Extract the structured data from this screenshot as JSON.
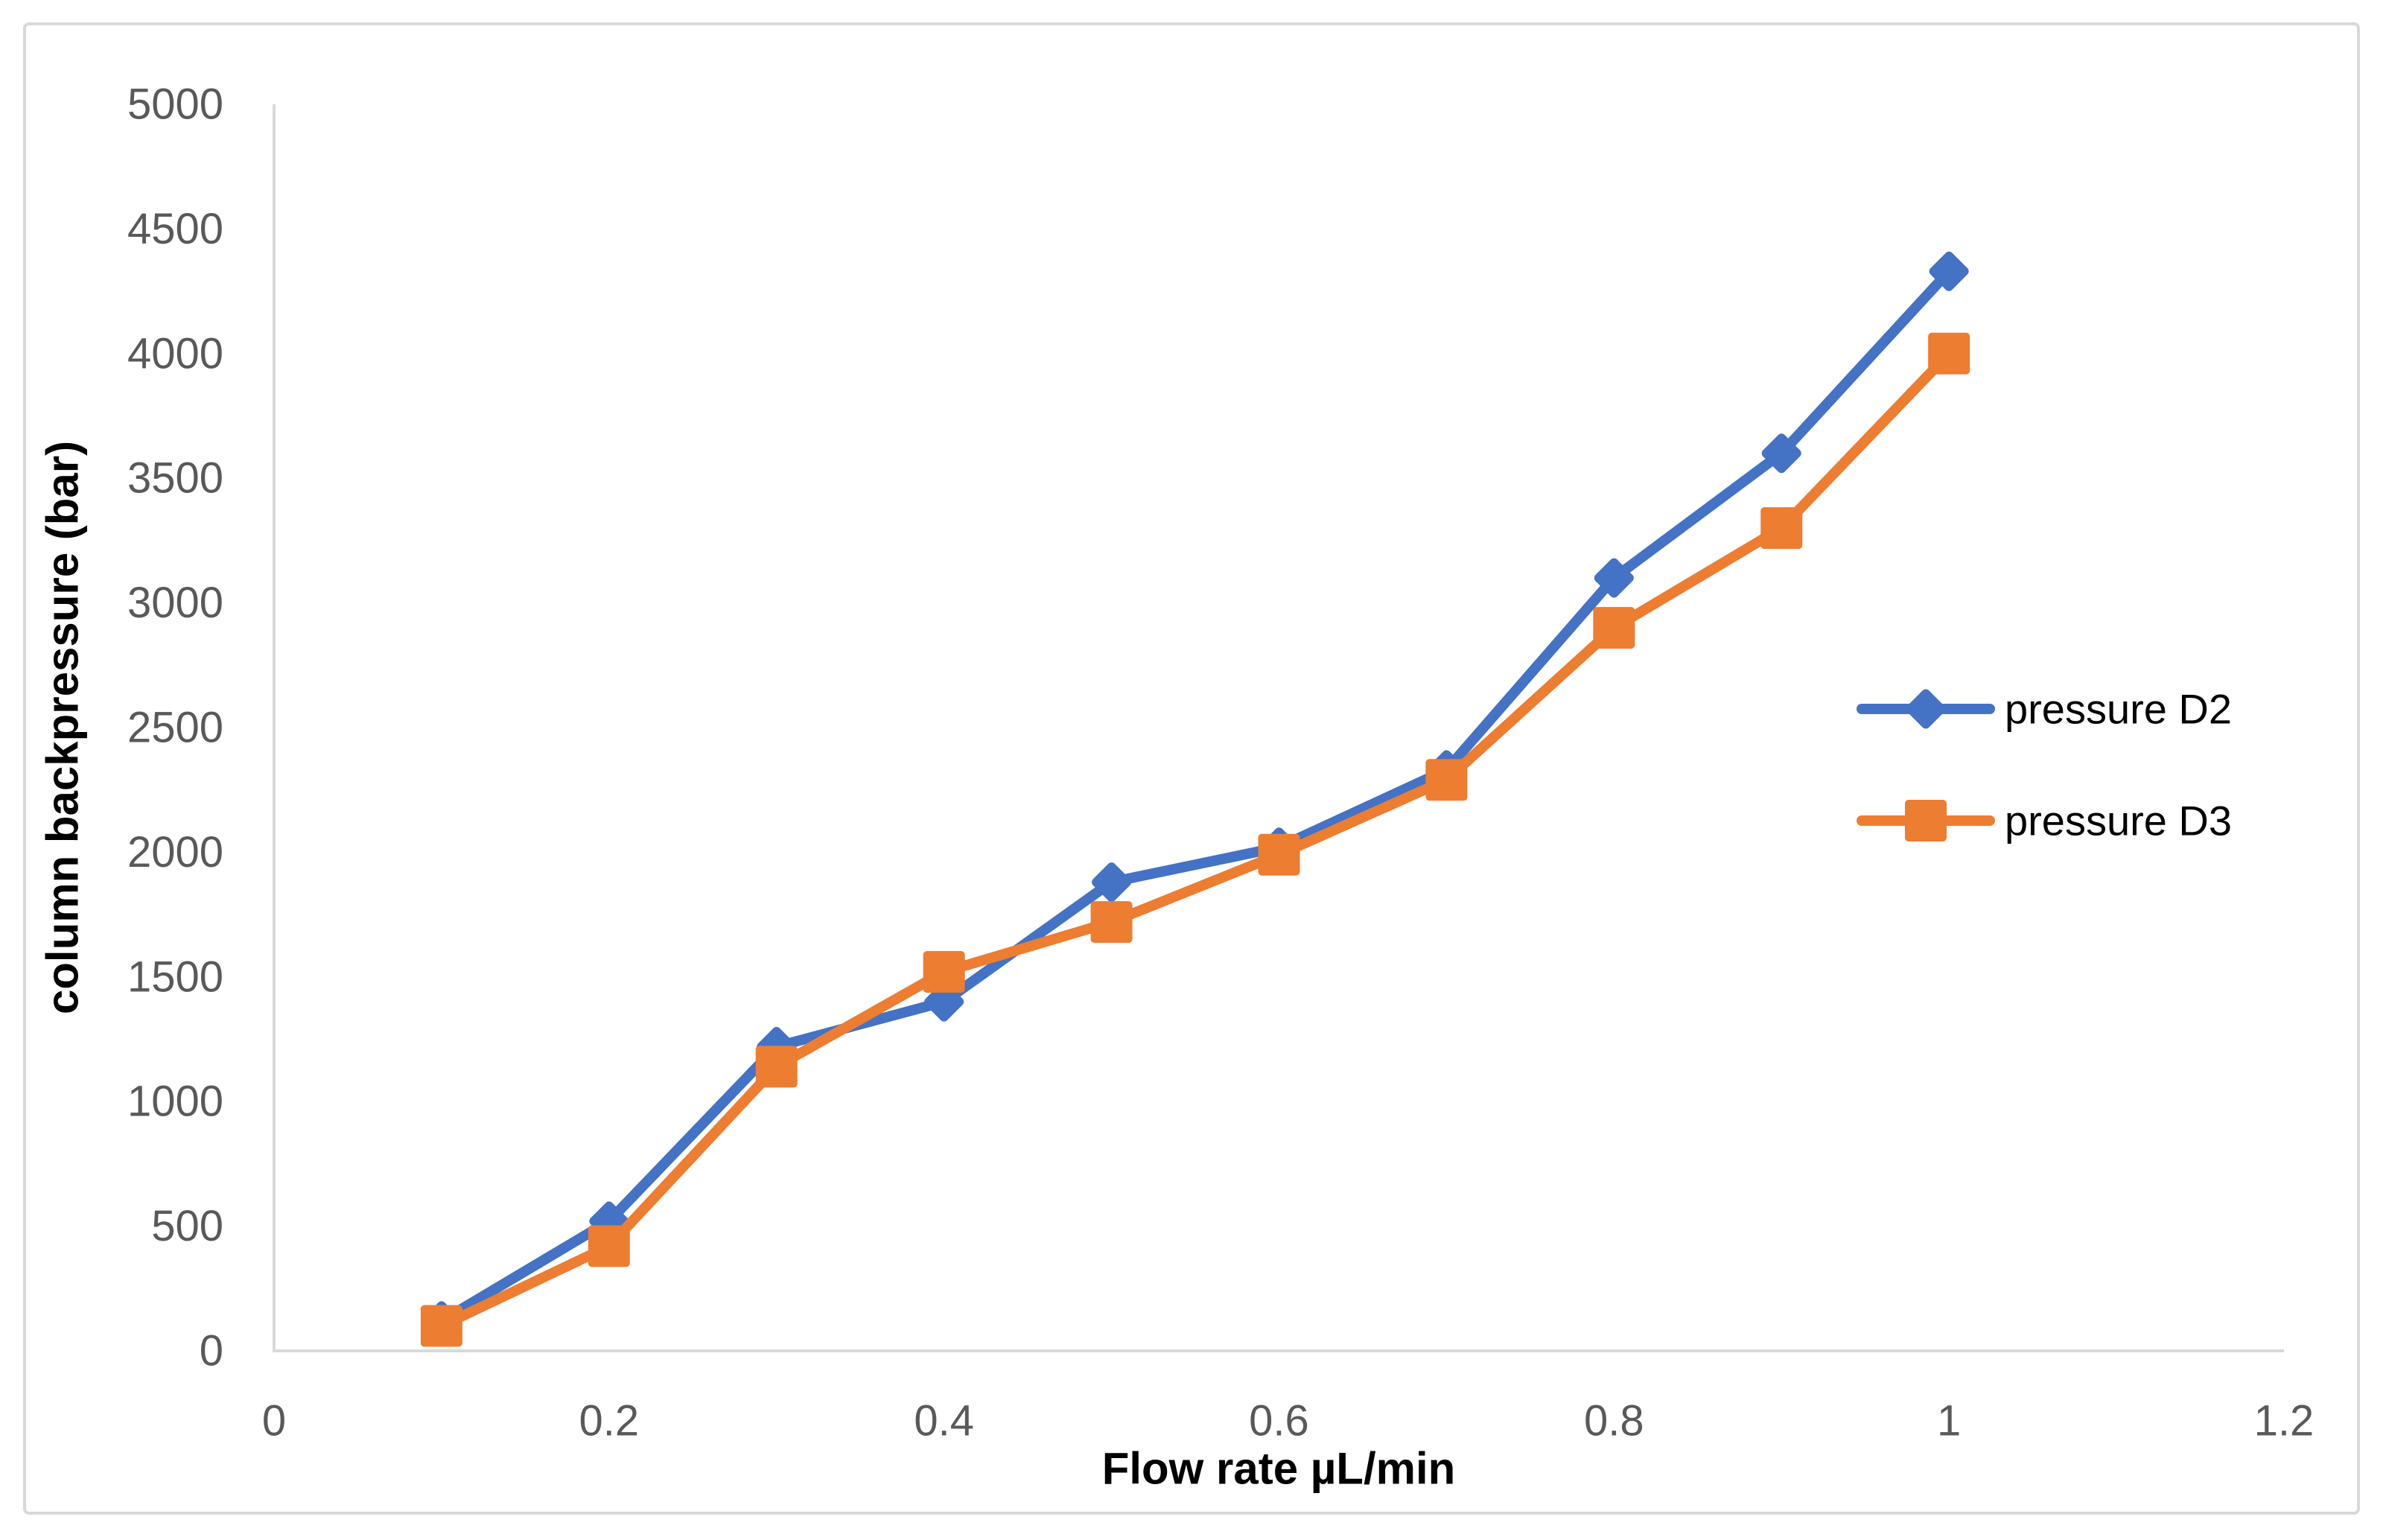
{
  "figure": {
    "background_color": "#ffffff",
    "frame_border_color": "#d9d9d9"
  },
  "chart_data": {
    "type": "line",
    "x": [
      0.1,
      0.2,
      0.3,
      0.4,
      0.5,
      0.6,
      0.7,
      0.8,
      0.9,
      1.0
    ],
    "series": [
      {
        "name": "pressure D2",
        "color": "#4472c4",
        "marker": "diamond",
        "values": [
          120,
          520,
          1220,
          1400,
          1880,
          2020,
          2330,
          3100,
          3600,
          4330
        ]
      },
      {
        "name": "pressure D3",
        "color": "#ed7d31",
        "marker": "square",
        "values": [
          100,
          420,
          1140,
          1520,
          1720,
          1990,
          2290,
          2900,
          3300,
          4000
        ]
      }
    ],
    "xlabel": "Flow rate µL/min",
    "ylabel": "column backpressure (bar)",
    "xlim": [
      0,
      1.2
    ],
    "ylim": [
      0,
      5000
    ],
    "x_tick_values": [
      0,
      0.2,
      0.4,
      0.6,
      0.8,
      1,
      1.2
    ],
    "x_tick_labels": [
      "0",
      "0.2",
      "0.4",
      "0.6",
      "0.8",
      "1",
      "1.2"
    ],
    "y_tick_values": [
      0,
      500,
      1000,
      1500,
      2000,
      2500,
      3000,
      3500,
      4000,
      4500,
      5000
    ],
    "y_tick_labels": [
      "0",
      "500",
      "1000",
      "1500",
      "2000",
      "2500",
      "3000",
      "3500",
      "4000",
      "4500",
      "5000"
    ],
    "grid": false,
    "legend_position": "right-center",
    "axis_line_color": "#d9d9d9",
    "tick_label_color": "#595959",
    "axis_title_color": "#000000",
    "legend_text_color": "#000000"
  }
}
